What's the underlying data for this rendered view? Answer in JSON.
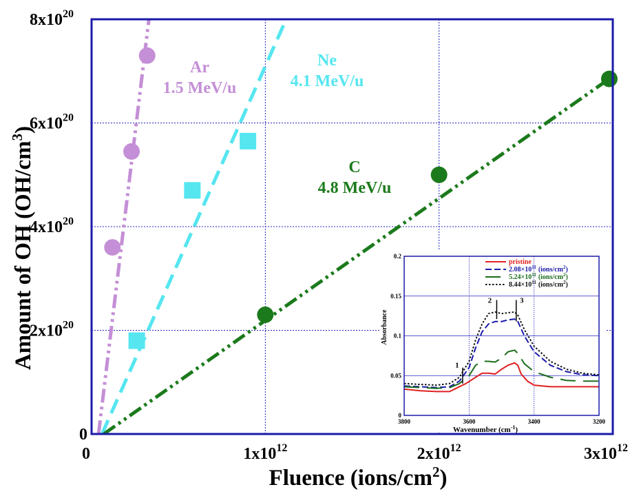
{
  "chart_data": [
    {
      "type": "scatter",
      "xlabel": "Fluence (ions/cm",
      "xlabel_sup": "2",
      "xlabel_end": ")",
      "ylabel": "Amount of OH (OH/cm",
      "ylabel_sup": "3",
      "ylabel_end": ")",
      "xlim": [
        0,
        3000000000000
      ],
      "ylim": [
        0,
        8e+20
      ],
      "grid": true,
      "x_ticks": [
        {
          "value": 0,
          "base": "0",
          "exp": ""
        },
        {
          "value": 1000000000000,
          "base": "1x10",
          "exp": "12"
        },
        {
          "value": 2000000000000,
          "base": "2x10",
          "exp": "12"
        },
        {
          "value": 3000000000000,
          "base": "3x10",
          "exp": "12"
        }
      ],
      "y_ticks": [
        {
          "value": 0,
          "base": "0",
          "exp": ""
        },
        {
          "value": 2e+20,
          "base": "2x10",
          "exp": "20"
        },
        {
          "value": 4e+20,
          "base": "4x10",
          "exp": "20"
        },
        {
          "value": 6e+20,
          "base": "6x10",
          "exp": "20"
        },
        {
          "value": 8e+20,
          "base": "8x10",
          "exp": "20"
        }
      ],
      "series": [
        {
          "name": "Ar",
          "label_lines": [
            "Ar",
            "1.5 MeV/u"
          ],
          "color": "#c48fd6",
          "marker": "circle",
          "points": [
            [
              120000000000,
              3.6e+20
            ],
            [
              230000000000,
              5.45e+20
            ],
            [
              320000000000,
              7.3e+20
            ]
          ],
          "fit": [
            [
              40000000000,
              0
            ],
            [
              330000000000,
              8e+20
            ]
          ],
          "dash": "dash-dot-dot"
        },
        {
          "name": "Ne",
          "label_lines": [
            "Ne",
            "4.1 MeV/u"
          ],
          "color": "#55e6f0",
          "marker": "square",
          "points": [
            [
              260000000000,
              1.8e+20
            ],
            [
              580000000000,
              4.7e+20
            ],
            [
              900000000000,
              5.65e+20
            ]
          ],
          "fit": [
            [
              60000000000,
              0
            ],
            [
              1120000000000,
              8e+20
            ]
          ],
          "dash": "dash"
        },
        {
          "name": "C",
          "label_lines": [
            "C",
            "4.8 MeV/u"
          ],
          "color": "#1b7a1b",
          "marker": "circle",
          "points": [
            [
              1000000000000,
              2.3e+20
            ],
            [
              2000000000000,
              5e+20
            ],
            [
              2980000000000,
              6.85e+20
            ]
          ],
          "fit": [
            [
              70000000000,
              0
            ],
            [
              3000000000000,
              6.9e+20
            ]
          ],
          "dash": "dash-dot-dot"
        }
      ]
    },
    {
      "type": "line",
      "inset": true,
      "xlabel": "Wavenumber (cm",
      "xlabel_sup": "-1",
      "xlabel_end": ")",
      "ylabel": "Absorbance",
      "xlim": [
        3800,
        3200
      ],
      "ylim": [
        0,
        0.2
      ],
      "x_ticks": [
        "3800",
        "3600",
        "3400",
        "3200"
      ],
      "y_ticks": [
        "0",
        "0.05",
        "0.1",
        "0.15",
        "0.2"
      ],
      "grid": true,
      "legend_position": "top-right",
      "annotations": [
        "1",
        "2",
        "3"
      ],
      "series": [
        {
          "name": "pristine",
          "color": "#e02020",
          "style": "solid",
          "points": [
            [
              3800,
              0.033
            ],
            [
              3750,
              0.031
            ],
            [
              3700,
              0.03
            ],
            [
              3660,
              0.03
            ],
            [
              3640,
              0.034
            ],
            [
              3610,
              0.04
            ],
            [
              3580,
              0.048
            ],
            [
              3560,
              0.053
            ],
            [
              3540,
              0.053
            ],
            [
              3520,
              0.052
            ],
            [
              3500,
              0.058
            ],
            [
              3480,
              0.063
            ],
            [
              3460,
              0.066
            ],
            [
              3450,
              0.063
            ],
            [
              3440,
              0.052
            ],
            [
              3420,
              0.043
            ],
            [
              3400,
              0.038
            ],
            [
              3350,
              0.036
            ],
            [
              3300,
              0.036
            ],
            [
              3200,
              0.036
            ]
          ]
        },
        {
          "name": "2.08×10",
          "exp": "11",
          "unit": "(ions/cm",
          "unit_sup": "2",
          "color": "#1a1aa8",
          "style": "long-dash",
          "points": [
            [
              3800,
              0.037
            ],
            [
              3750,
              0.036
            ],
            [
              3700,
              0.035
            ],
            [
              3660,
              0.036
            ],
            [
              3630,
              0.043
            ],
            [
              3600,
              0.06
            ],
            [
              3580,
              0.085
            ],
            [
              3560,
              0.105
            ],
            [
              3540,
              0.115
            ],
            [
              3520,
              0.118
            ],
            [
              3500,
              0.118
            ],
            [
              3480,
              0.12
            ],
            [
              3460,
              0.121
            ],
            [
              3450,
              0.118
            ],
            [
              3430,
              0.1
            ],
            [
              3400,
              0.08
            ],
            [
              3350,
              0.063
            ],
            [
              3300,
              0.055
            ],
            [
              3250,
              0.051
            ],
            [
              3200,
              0.05
            ]
          ]
        },
        {
          "name": "5.24×10",
          "exp": "11",
          "unit": "(ions/cm",
          "unit_sup": "2",
          "color": "#1b6b1b",
          "style": "dash",
          "points": [
            [
              3800,
              0.036
            ],
            [
              3750,
              0.035
            ],
            [
              3700,
              0.034
            ],
            [
              3660,
              0.035
            ],
            [
              3630,
              0.04
            ],
            [
              3600,
              0.05
            ],
            [
              3580,
              0.063
            ],
            [
              3560,
              0.068
            ],
            [
              3540,
              0.068
            ],
            [
              3520,
              0.067
            ],
            [
              3500,
              0.072
            ],
            [
              3480,
              0.08
            ],
            [
              3460,
              0.082
            ],
            [
              3450,
              0.078
            ],
            [
              3430,
              0.065
            ],
            [
              3400,
              0.055
            ],
            [
              3350,
              0.048
            ],
            [
              3300,
              0.044
            ],
            [
              3250,
              0.043
            ],
            [
              3200,
              0.043
            ]
          ]
        },
        {
          "name": "8.44×10",
          "exp": "11",
          "unit": "(ions/cm",
          "unit_sup": "2",
          "color": "#111111",
          "style": "dot",
          "points": [
            [
              3800,
              0.04
            ],
            [
              3750,
              0.039
            ],
            [
              3700,
              0.038
            ],
            [
              3660,
              0.04
            ],
            [
              3630,
              0.048
            ],
            [
              3600,
              0.068
            ],
            [
              3580,
              0.095
            ],
            [
              3560,
              0.115
            ],
            [
              3540,
              0.128
            ],
            [
              3520,
              0.13
            ],
            [
              3500,
              0.128
            ],
            [
              3480,
              0.129
            ],
            [
              3460,
              0.13
            ],
            [
              3450,
              0.126
            ],
            [
              3430,
              0.108
            ],
            [
              3400,
              0.087
            ],
            [
              3350,
              0.068
            ],
            [
              3300,
              0.058
            ],
            [
              3250,
              0.053
            ],
            [
              3200,
              0.051
            ]
          ]
        }
      ]
    }
  ]
}
